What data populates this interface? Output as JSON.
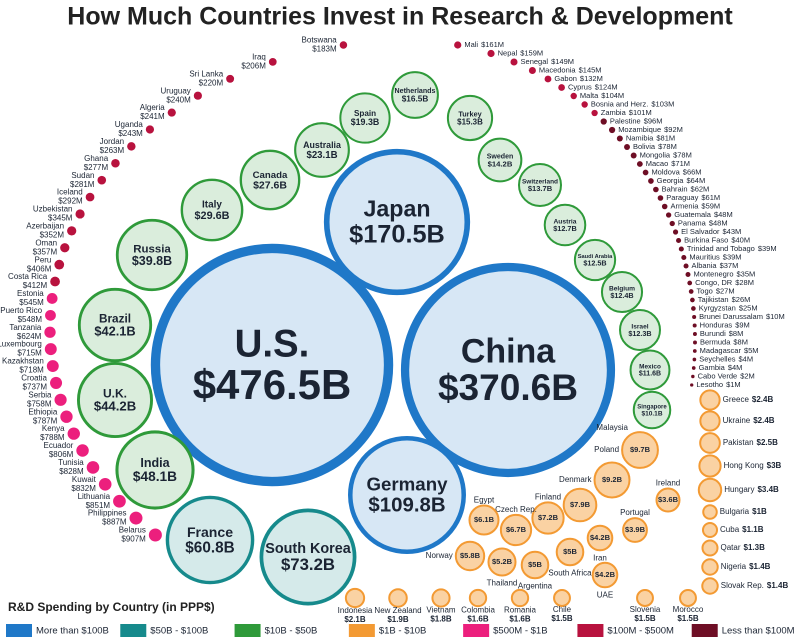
{
  "chart_data": {
    "type": "packed-bubble",
    "title": "How Much Countries Invest in Research & Development",
    "legend_title": "R&D Spending by Country (in PPP$)",
    "annotations": [
      "Malaysia"
    ],
    "series": [
      {
        "name": "More than $100B",
        "color": "#1f78c8",
        "categories": [
          "U.S.",
          "China",
          "Japan",
          "Germany"
        ],
        "values": [
          476.5,
          370.6,
          170.5,
          109.8
        ],
        "value_labels": [
          "$476.5B",
          "$370.6B",
          "$170.5B",
          "$109.8B"
        ]
      },
      {
        "name": "$50B - $100B",
        "color": "#168a8c",
        "categories": [
          "South Korea",
          "France"
        ],
        "values": [
          73.2,
          60.8
        ],
        "value_labels": [
          "$73.2B",
          "$60.8B"
        ]
      },
      {
        "name": "$10B - $50B",
        "color": "#2f9a3a",
        "categories": [
          "India",
          "U.K.",
          "Brazil",
          "Russia",
          "Italy",
          "Canada",
          "Australia",
          "Spain",
          "Netherlands",
          "Turkey",
          "Sweden",
          "Switzerland",
          "Austria",
          "Saudi Arabia",
          "Belgium",
          "Israel",
          "Mexico",
          "Singapore"
        ],
        "values": [
          48.1,
          44.2,
          42.1,
          39.8,
          29.6,
          27.6,
          23.1,
          19.3,
          16.5,
          15.3,
          14.2,
          13.7,
          12.7,
          12.5,
          12.4,
          12.3,
          11.6,
          10.1
        ],
        "value_labels": [
          "$48.1B",
          "$44.2B",
          "$42.1B",
          "$39.8B",
          "$29.6B",
          "$27.6B",
          "$23.1B",
          "$19.3B",
          "$16.5B",
          "$15.3B",
          "$14.2B",
          "$13.7B",
          "$12.7B",
          "$12.5B",
          "$12.4B",
          "$12.3B",
          "$11.6B",
          "$10.1B"
        ]
      },
      {
        "name": "$1B - $10B",
        "color": "#f39a33",
        "categories": [
          "Poland",
          "Denmark",
          null,
          "Finland",
          "Czech Rep.",
          "Egypt",
          "Norway",
          "Thailand",
          "Argentina",
          "South Africa",
          "Iran",
          "UAE",
          "Portugal",
          "Ireland",
          "Greece",
          "Ukraine",
          "Pakistan",
          "Hong Kong",
          "Hungary",
          "Bulgaria",
          "Cuba",
          "Qatar",
          "Nigeria",
          "Slovak Rep.",
          "Indonesia",
          "New Zealand",
          "Vietnam",
          "Colombia",
          "Romania",
          "Chile",
          "Slovenia",
          "Morocco"
        ],
        "values": [
          9.7,
          9.2,
          7.9,
          7.2,
          6.7,
          6.1,
          5.8,
          5.2,
          5,
          5,
          4.2,
          4.2,
          3.9,
          3.6,
          2.4,
          2.4,
          2.5,
          3,
          3.4,
          1,
          1.1,
          1.3,
          1.4,
          1.4,
          2.1,
          1.9,
          1.8,
          1.6,
          1.6,
          1.5,
          1.5,
          1.5
        ],
        "value_labels": [
          "$9.7B",
          "$9.2B",
          "$7.9B",
          "$7.2B",
          "$6.7B",
          "$6.1B",
          "$5.8B",
          "$5.2B",
          "$5B",
          "$5B",
          "$4.2B",
          "$4.2B",
          "$3.9B",
          "$3.6B",
          "$2.4B",
          "$2.4B",
          "$2.5B",
          "$3B",
          "$3.4B",
          "$1B",
          "$1.1B",
          "$1.3B",
          "$1.4B",
          "$1.4B",
          "$2.1B",
          "$1.9B",
          "$1.8B",
          "$1.6B",
          "$1.6B",
          "$1.5B",
          "$1.5B",
          "$1.5B"
        ]
      },
      {
        "name": "$500M - $1B",
        "color": "#ec1f7d",
        "categories": [
          "Estonia",
          "Puerto Rico",
          "Tanzania",
          "Luxembourg",
          "Kazakhstan",
          "Croatia",
          "Serbia",
          "Ethiopia",
          "Kenya",
          "Ecuador",
          "Tunisia",
          "Kuwait",
          "Lithuania",
          "Philippines",
          "Belarus"
        ],
        "values": [
          0.545,
          0.548,
          0.624,
          0.715,
          0.718,
          0.737,
          0.758,
          0.787,
          0.788,
          0.806,
          0.828,
          0.832,
          0.851,
          0.887,
          0.907
        ],
        "value_labels": [
          "$545M",
          "$548M",
          "$624M",
          "$715M",
          "$718M",
          "$737M",
          "$758M",
          "$787M",
          "$788M",
          "$806M",
          "$828M",
          "$832M",
          "$851M",
          "$887M",
          "$907M"
        ]
      },
      {
        "name": "$100M - $500M",
        "color": "#b8123e",
        "categories": [
          "Botswana",
          "Iraq",
          "Sri Lanka",
          "Uruguay",
          "Algeria",
          "Uganda",
          "Jordan",
          "Ghana",
          "Sudan",
          "Iceland",
          "Uzbekistan",
          "Azerbaijan",
          "Oman",
          "Peru",
          "Costa Rica",
          "Mali",
          "Nepal",
          "Senegal",
          "Macedonia",
          "Gabon",
          "Cyprus",
          "Malta",
          "Bosnia and Herz.",
          "Zambia"
        ],
        "values": [
          0.183,
          0.206,
          0.22,
          0.24,
          0.241,
          0.243,
          0.263,
          0.277,
          0.281,
          0.292,
          0.345,
          0.352,
          0.357,
          0.406,
          0.412,
          0.161,
          0.159,
          0.149,
          0.145,
          0.132,
          0.124,
          0.104,
          0.103,
          0.101
        ],
        "value_labels": [
          "$183M",
          "$206M",
          "$220M",
          "$240M",
          "$241M",
          "$243M",
          "$263M",
          "$277M",
          "$281M",
          "$292M",
          "$345M",
          "$352M",
          "$357M",
          "$406M",
          "$412M",
          "$161M",
          "$159M",
          "$149M",
          "$145M",
          "$132M",
          "$124M",
          "$104M",
          "$103M",
          "$101M"
        ]
      },
      {
        "name": "Less than $100M",
        "color": "#6e0e25",
        "categories": [
          "Palestine",
          "Mozambique",
          "Namibia",
          "Bolivia",
          "Mongolia",
          "Macao",
          "Moldova",
          "Georgia",
          "Bahrain",
          "Paraguay",
          "Armenia",
          "Guatemala",
          "Panama",
          "El Salvador",
          "Burkina Faso",
          "Trinidad and Tobago",
          "Mauritius",
          "Albania",
          "Montenegro",
          "Congo, DR",
          "Togo",
          "Tajikistan",
          "Kyrgyzstan",
          "Brunei Darussalam",
          "Honduras",
          "Burundi",
          "Bermuda",
          "Madagascar",
          "Seychelles",
          "Gambia",
          "Cabo Verde",
          "Lesotho"
        ],
        "values": [
          0.096,
          0.092,
          0.081,
          0.078,
          0.078,
          0.071,
          0.066,
          0.064,
          0.062,
          0.061,
          0.059,
          0.048,
          0.048,
          0.043,
          0.04,
          0.039,
          0.039,
          0.037,
          0.035,
          0.028,
          0.027,
          0.026,
          0.025,
          0.01,
          0.009,
          0.008,
          0.008,
          0.005,
          0.004,
          0.004,
          0.002,
          0.001
        ],
        "value_labels": [
          "$96M",
          "$92M",
          "$81M",
          "$78M",
          "$78M",
          "$71M",
          "$66M",
          "$64M",
          "$62M",
          "$61M",
          "$59M",
          "$48M",
          "$48M",
          "$43M",
          "$40M",
          "$39M",
          "$39M",
          "$37M",
          "$35M",
          "$28M",
          "$27M",
          "$26M",
          "$25M",
          "$10M",
          "$9M",
          "$8M",
          "$8M",
          "$5M",
          "$4M",
          "$4M",
          "$2M",
          "$1M"
        ]
      }
    ]
  }
}
